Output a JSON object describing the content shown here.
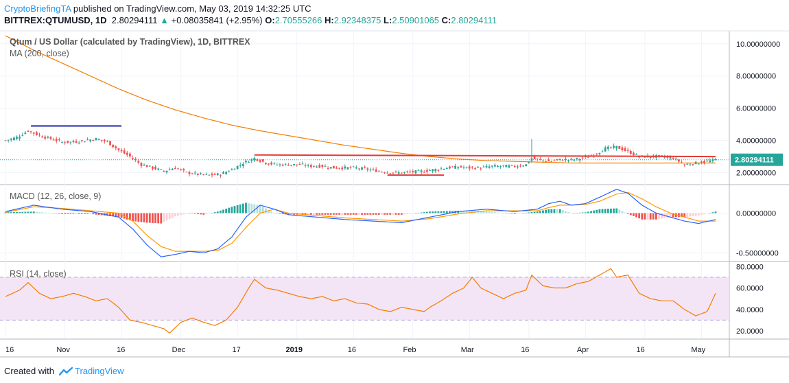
{
  "header": {
    "author": "CryptoBriefingTA",
    "published_text": "published on TradingView.com, May 03, 2019 14:32:25 UTC",
    "symbol": "BITTREX:QTUMUSD, 1D",
    "last": "2.80294111",
    "change": "+0.08035841 (+2.95%)",
    "o_label": "O:",
    "o_value": "2.70555266",
    "h_label": "H:",
    "h_value": "2.92348375",
    "l_label": "L:",
    "l_value": "2.50901065",
    "c_label": "C:",
    "c_value": "2.80294111"
  },
  "footer": {
    "created_with": "Created with",
    "brand": "TradingView"
  },
  "colors": {
    "up": "#26a69a",
    "down": "#ef5350",
    "ma": "#f57c00",
    "macd": "#2962ff",
    "signal": "#ff9800",
    "rsi": "#f57c00",
    "rsi_band": "#f3e5f5",
    "price_line": "#26a69a",
    "resistance": "#e53935",
    "support_hist": "#1e22aa"
  },
  "chart_data": [
    {
      "type": "line",
      "pane": "price",
      "title": "Qtum / US Dollar (calculated by TradingView), 1D, BITTREX",
      "indicator_label": "MA (200, close)",
      "y_ticks": [
        "10.00000000",
        "8.00000000",
        "6.00000000",
        "4.00000000",
        "2.00000000"
      ],
      "ylim": [
        1.3,
        10.8
      ],
      "current_price": "2.80294111",
      "x_ticks": [
        "16",
        "Nov",
        "16",
        "Dec",
        "17",
        "2019",
        "16",
        "Feb",
        "Mar",
        "16",
        "Apr",
        "16",
        "May"
      ],
      "series": [
        {
          "name": "candles",
          "close_points": [
            [
              0,
              4.0
            ],
            [
              4,
              4.2
            ],
            [
              8,
              4.6
            ],
            [
              12,
              4.3
            ],
            [
              16,
              4.1
            ],
            [
              20,
              3.9
            ],
            [
              24,
              3.9
            ],
            [
              28,
              4.0
            ],
            [
              32,
              4.1
            ],
            [
              36,
              3.9
            ],
            [
              40,
              3.4
            ],
            [
              44,
              3.0
            ],
            [
              48,
              2.5
            ],
            [
              52,
              2.3
            ],
            [
              56,
              2.1
            ],
            [
              60,
              2.3
            ],
            [
              64,
              2.0
            ],
            [
              68,
              1.9
            ],
            [
              72,
              1.85
            ],
            [
              76,
              1.9
            ],
            [
              80,
              2.2
            ],
            [
              84,
              2.6
            ],
            [
              88,
              2.9
            ],
            [
              92,
              2.6
            ],
            [
              96,
              2.5
            ],
            [
              100,
              2.5
            ],
            [
              104,
              2.5
            ],
            [
              108,
              2.4
            ],
            [
              112,
              2.4
            ],
            [
              116,
              2.3
            ],
            [
              120,
              2.3
            ],
            [
              124,
              2.3
            ],
            [
              128,
              2.2
            ],
            [
              132,
              2.1
            ],
            [
              136,
              2.0
            ],
            [
              140,
              2.0
            ],
            [
              144,
              2.05
            ],
            [
              148,
              2.1
            ],
            [
              152,
              2.2
            ],
            [
              156,
              2.3
            ],
            [
              160,
              2.35
            ],
            [
              164,
              2.3
            ],
            [
              168,
              2.3
            ],
            [
              172,
              2.4
            ],
            [
              176,
              2.4
            ],
            [
              180,
              2.4
            ],
            [
              184,
              2.5
            ],
            [
              186,
              2.9
            ],
            [
              188,
              2.8
            ],
            [
              192,
              2.7
            ],
            [
              196,
              2.8
            ],
            [
              200,
              2.8
            ],
            [
              204,
              2.9
            ],
            [
              208,
              3.1
            ],
            [
              212,
              3.5
            ],
            [
              216,
              3.6
            ],
            [
              220,
              3.3
            ],
            [
              224,
              3.0
            ],
            [
              228,
              3.0
            ],
            [
              232,
              3.0
            ],
            [
              236,
              2.9
            ],
            [
              240,
              2.5
            ],
            [
              244,
              2.6
            ],
            [
              248,
              2.7
            ],
            [
              251,
              2.8
            ]
          ]
        },
        {
          "name": "MA (200, close)",
          "points": [
            [
              0,
              10.5
            ],
            [
              10,
              9.6
            ],
            [
              20,
              8.8
            ],
            [
              30,
              8.0
            ],
            [
              40,
              7.2
            ],
            [
              50,
              6.5
            ],
            [
              60,
              5.9
            ],
            [
              70,
              5.4
            ],
            [
              80,
              4.95
            ],
            [
              90,
              4.6
            ],
            [
              100,
              4.3
            ],
            [
              110,
              4.0
            ],
            [
              120,
              3.7
            ],
            [
              130,
              3.45
            ],
            [
              140,
              3.2
            ],
            [
              150,
              3.0
            ],
            [
              160,
              2.85
            ],
            [
              170,
              2.75
            ],
            [
              180,
              2.7
            ],
            [
              190,
              2.65
            ],
            [
              200,
              2.6
            ],
            [
              210,
              2.6
            ],
            [
              220,
              2.6
            ],
            [
              230,
              2.6
            ],
            [
              240,
              2.6
            ],
            [
              251,
              2.6
            ]
          ]
        }
      ],
      "annotations": [
        {
          "name": "resistance-line",
          "from": [
            88,
            3.1
          ],
          "to": [
            251,
            3.0
          ]
        },
        {
          "name": "support-line",
          "from": [
            135,
            1.85
          ],
          "to": [
            155,
            1.85
          ]
        },
        {
          "name": "top-line",
          "from": [
            9,
            4.9
          ],
          "to": [
            41,
            4.9
          ]
        }
      ]
    },
    {
      "type": "line",
      "pane": "macd",
      "indicator_label": "MACD (12, 26, close, 9)",
      "y_ticks": [
        "0.00000000",
        "-0.50000000"
      ],
      "ylim": [
        -0.6,
        0.35
      ],
      "series": [
        {
          "name": "MACD",
          "points": [
            [
              0,
              0.02
            ],
            [
              10,
              0.1
            ],
            [
              20,
              0.05
            ],
            [
              30,
              0.02
            ],
            [
              40,
              -0.05
            ],
            [
              45,
              -0.2
            ],
            [
              50,
              -0.4
            ],
            [
              55,
              -0.55
            ],
            [
              60,
              -0.52
            ],
            [
              65,
              -0.48
            ],
            [
              70,
              -0.5
            ],
            [
              75,
              -0.45
            ],
            [
              80,
              -0.3
            ],
            [
              85,
              -0.05
            ],
            [
              90,
              0.1
            ],
            [
              95,
              0.05
            ],
            [
              100,
              -0.02
            ],
            [
              110,
              -0.05
            ],
            [
              120,
              -0.08
            ],
            [
              130,
              -0.1
            ],
            [
              140,
              -0.12
            ],
            [
              150,
              -0.05
            ],
            [
              160,
              0.02
            ],
            [
              170,
              0.05
            ],
            [
              180,
              0.02
            ],
            [
              188,
              0.05
            ],
            [
              192,
              0.12
            ],
            [
              196,
              0.15
            ],
            [
              200,
              0.1
            ],
            [
              205,
              0.12
            ],
            [
              210,
              0.2
            ],
            [
              216,
              0.3
            ],
            [
              220,
              0.25
            ],
            [
              225,
              0.1
            ],
            [
              230,
              0.0
            ],
            [
              235,
              -0.05
            ],
            [
              240,
              -0.1
            ],
            [
              245,
              -0.13
            ],
            [
              251,
              -0.08
            ]
          ]
        },
        {
          "name": "Signal",
          "points": [
            [
              0,
              0.01
            ],
            [
              10,
              0.08
            ],
            [
              20,
              0.06
            ],
            [
              30,
              0.03
            ],
            [
              40,
              0.0
            ],
            [
              45,
              -0.1
            ],
            [
              50,
              -0.28
            ],
            [
              55,
              -0.42
            ],
            [
              60,
              -0.48
            ],
            [
              65,
              -0.48
            ],
            [
              70,
              -0.48
            ],
            [
              75,
              -0.47
            ],
            [
              80,
              -0.38
            ],
            [
              85,
              -0.18
            ],
            [
              90,
              0.0
            ],
            [
              95,
              0.05
            ],
            [
              100,
              0.0
            ],
            [
              110,
              -0.03
            ],
            [
              120,
              -0.06
            ],
            [
              130,
              -0.08
            ],
            [
              140,
              -0.1
            ],
            [
              150,
              -0.07
            ],
            [
              160,
              -0.01
            ],
            [
              170,
              0.03
            ],
            [
              180,
              0.03
            ],
            [
              188,
              0.03
            ],
            [
              192,
              0.07
            ],
            [
              196,
              0.1
            ],
            [
              200,
              0.1
            ],
            [
              205,
              0.11
            ],
            [
              210,
              0.15
            ],
            [
              216,
              0.24
            ],
            [
              220,
              0.26
            ],
            [
              225,
              0.18
            ],
            [
              230,
              0.08
            ],
            [
              235,
              0.0
            ],
            [
              240,
              -0.05
            ],
            [
              245,
              -0.1
            ],
            [
              251,
              -0.1
            ]
          ]
        }
      ]
    },
    {
      "type": "line",
      "pane": "rsi",
      "indicator_label": "RSI (14, close)",
      "y_ticks": [
        "80.0000",
        "60.0000",
        "40.0000",
        "20.0000"
      ],
      "ylim": [
        13,
        84
      ],
      "bands": [
        30,
        70
      ],
      "series": [
        {
          "name": "RSI",
          "points": [
            [
              0,
              52
            ],
            [
              5,
              58
            ],
            [
              8,
              65
            ],
            [
              12,
              55
            ],
            [
              16,
              50
            ],
            [
              20,
              52
            ],
            [
              24,
              55
            ],
            [
              28,
              52
            ],
            [
              32,
              48
            ],
            [
              36,
              50
            ],
            [
              40,
              42
            ],
            [
              44,
              30
            ],
            [
              48,
              28
            ],
            [
              52,
              25
            ],
            [
              56,
              22
            ],
            [
              58,
              18
            ],
            [
              62,
              28
            ],
            [
              66,
              32
            ],
            [
              70,
              28
            ],
            [
              74,
              25
            ],
            [
              78,
              30
            ],
            [
              82,
              42
            ],
            [
              86,
              60
            ],
            [
              88,
              68
            ],
            [
              92,
              60
            ],
            [
              96,
              58
            ],
            [
              100,
              55
            ],
            [
              104,
              52
            ],
            [
              108,
              50
            ],
            [
              112,
              52
            ],
            [
              116,
              48
            ],
            [
              120,
              50
            ],
            [
              124,
              46
            ],
            [
              128,
              45
            ],
            [
              132,
              40
            ],
            [
              136,
              38
            ],
            [
              140,
              42
            ],
            [
              144,
              40
            ],
            [
              148,
              38
            ],
            [
              150,
              42
            ],
            [
              154,
              48
            ],
            [
              158,
              55
            ],
            [
              162,
              60
            ],
            [
              165,
              70
            ],
            [
              168,
              60
            ],
            [
              172,
              55
            ],
            [
              176,
              50
            ],
            [
              180,
              55
            ],
            [
              184,
              58
            ],
            [
              186,
              72
            ],
            [
              190,
              62
            ],
            [
              194,
              60
            ],
            [
              198,
              60
            ],
            [
              202,
              64
            ],
            [
              206,
              66
            ],
            [
              210,
              72
            ],
            [
              214,
              78
            ],
            [
              216,
              70
            ],
            [
              220,
              72
            ],
            [
              224,
              55
            ],
            [
              228,
              50
            ],
            [
              232,
              48
            ],
            [
              236,
              48
            ],
            [
              240,
              40
            ],
            [
              244,
              34
            ],
            [
              248,
              38
            ],
            [
              251,
              55
            ]
          ]
        }
      ]
    }
  ]
}
